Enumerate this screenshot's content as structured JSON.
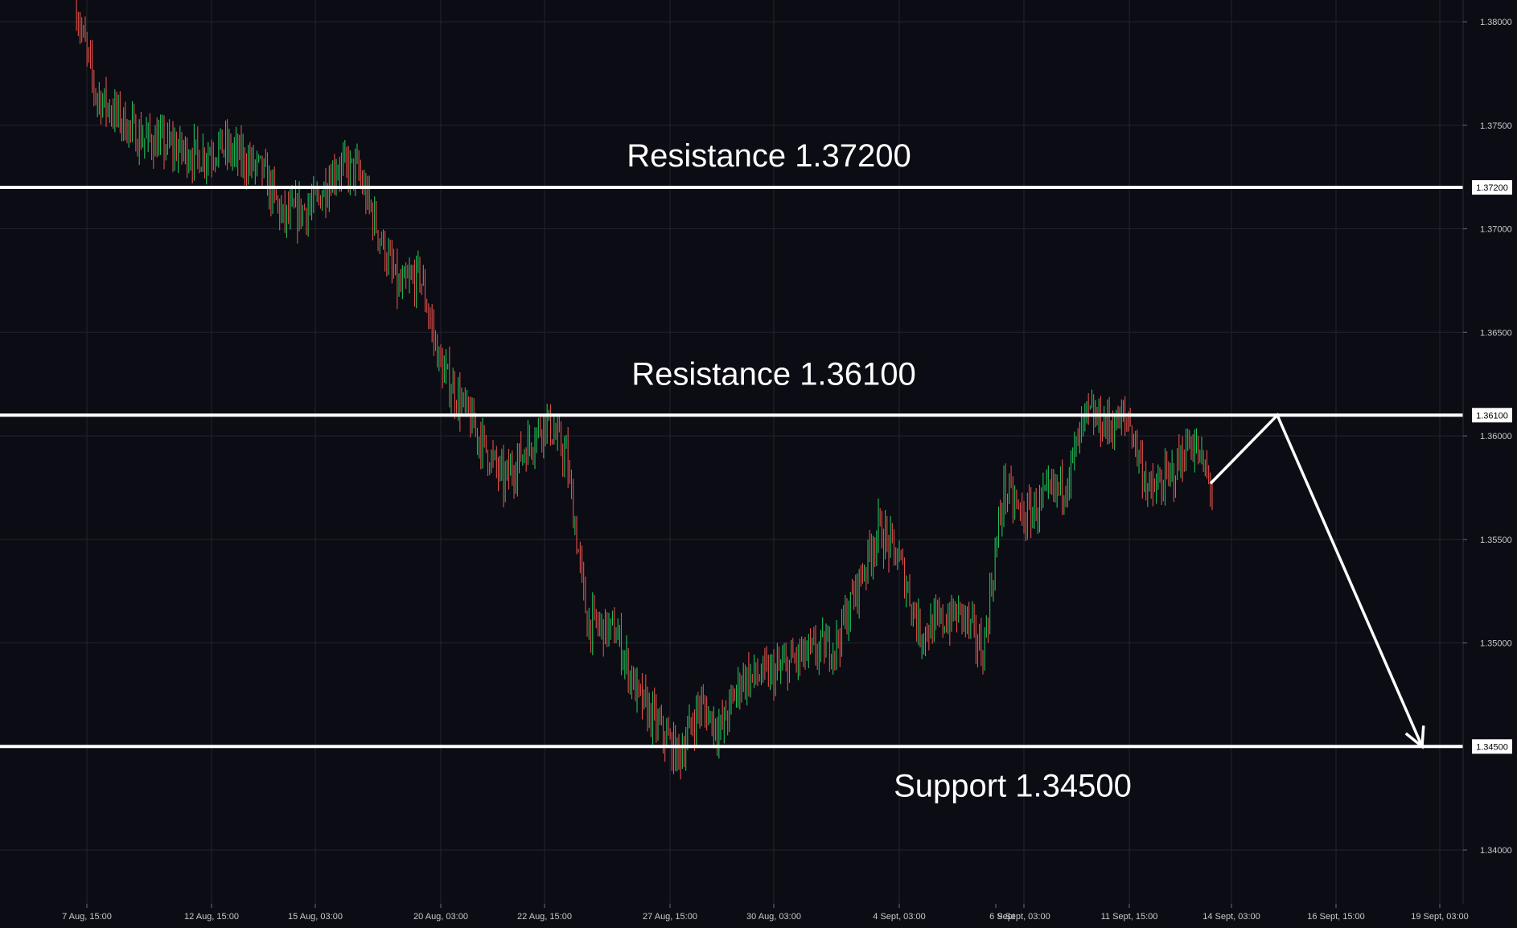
{
  "chart_data": {
    "type": "candlestick",
    "instrument": "",
    "ylim": [
      1.3374,
      1.38105
    ],
    "y_ticks": [
      "1.38000",
      "1.37500",
      "1.37000",
      "1.36500",
      "1.36000",
      "1.35500",
      "1.35000",
      "1.34000"
    ],
    "x_ticks": [
      "7 Aug, 15:00",
      "12 Aug, 15:00",
      "15 Aug, 03:00",
      "20 Aug, 03:00",
      "22 Aug, 15:00",
      "27 Aug, 15:00",
      "30 Aug, 03:00",
      "4 Sept, 03:00",
      "6 Sept",
      "9 Sept, 03:00",
      "11 Sept, 15:00",
      "14 Sept, 03:00",
      "16 Sept, 15:00",
      "19 Sept, 03:00"
    ],
    "grid": true,
    "colors": {
      "up": "#26a69a",
      "down": "#ef5350",
      "bullish_candle": "#22c05a",
      "bearish_candle": "#e0504a",
      "background": "#0c0c14",
      "level_line": "#ffffff",
      "grid": "#23232e"
    },
    "price_path": [
      {
        "t": "7 Aug, 03:00",
        "p": 1.381
      },
      {
        "t": "7 Aug, 15:00",
        "p": 1.3765
      },
      {
        "t": "8 Aug, 15:00",
        "p": 1.3745
      },
      {
        "t": "12 Aug, 03:00",
        "p": 1.3735
      },
      {
        "t": "12 Aug, 15:00",
        "p": 1.374
      },
      {
        "t": "13 Aug, 15:00",
        "p": 1.3728
      },
      {
        "t": "14 Aug, 03:00",
        "p": 1.3705
      },
      {
        "t": "15 Aug, 03:00",
        "p": 1.3712
      },
      {
        "t": "15 Aug, 15:00",
        "p": 1.373
      },
      {
        "t": "16 Aug, 03:00",
        "p": 1.3728
      },
      {
        "t": "19 Aug, 03:00",
        "p": 1.367
      },
      {
        "t": "19 Aug, 15:00",
        "p": 1.3678
      },
      {
        "t": "20 Aug, 03:00",
        "p": 1.3633
      },
      {
        "t": "20 Aug, 15:00",
        "p": 1.3615
      },
      {
        "t": "21 Aug, 15:00",
        "p": 1.3578
      },
      {
        "t": "22 Aug, 15:00",
        "p": 1.3608
      },
      {
        "t": "23 Aug, 03:00",
        "p": 1.359
      },
      {
        "t": "23 Aug, 15:00",
        "p": 1.351
      },
      {
        "t": "26 Aug, 03:00",
        "p": 1.3505
      },
      {
        "t": "26 Aug, 15:00",
        "p": 1.3475
      },
      {
        "t": "27 Aug, 15:00",
        "p": 1.3445
      },
      {
        "t": "28 Aug, 03:00",
        "p": 1.347
      },
      {
        "t": "28 Aug, 15:00",
        "p": 1.3458
      },
      {
        "t": "29 Aug, 03:00",
        "p": 1.3483
      },
      {
        "t": "30 Aug, 03:00",
        "p": 1.3485
      },
      {
        "t": "30 Aug, 15:00",
        "p": 1.3492
      },
      {
        "t": "2 Sept, 15:00",
        "p": 1.35
      },
      {
        "t": "3 Sept, 15:00",
        "p": 1.3555
      },
      {
        "t": "4 Sept, 03:00",
        "p": 1.354
      },
      {
        "t": "4 Sept, 15:00",
        "p": 1.3505
      },
      {
        "t": "5 Sept, 15:00",
        "p": 1.3515
      },
      {
        "t": "6 Sept, 03:00",
        "p": 1.3495
      },
      {
        "t": "6 Sept, 15:00",
        "p": 1.3575
      },
      {
        "t": "9 Sept, 03:00",
        "p": 1.356
      },
      {
        "t": "10 Sept, 03:00",
        "p": 1.3578
      },
      {
        "t": "10 Sept, 15:00",
        "p": 1.361
      },
      {
        "t": "11 Sept, 03:00",
        "p": 1.3605
      },
      {
        "t": "11 Sept, 15:00",
        "p": 1.3608
      },
      {
        "t": "12 Sept, 03:00",
        "p": 1.3572
      },
      {
        "t": "12 Sept, 15:00",
        "p": 1.358
      },
      {
        "t": "13 Sept, 03:00",
        "p": 1.3598
      },
      {
        "t": "13 Sept, 15:00",
        "p": 1.3575
      }
    ],
    "levels": [
      {
        "name": "Resistance 1.37200",
        "value": 1.372,
        "badge": "1.37200",
        "label": "Resistance 1.37200"
      },
      {
        "name": "Resistance 1.36100",
        "value": 1.361,
        "badge": "1.36100",
        "label": "Resistance 1.36100"
      },
      {
        "name": "Support 1.34500",
        "value": 1.345,
        "badge": "1.34500",
        "label": "Support 1.34500"
      }
    ],
    "projection": [
      {
        "t": "14 Sept, 03:00",
        "p": 1.3577
      },
      {
        "t": "15 Sept, 15:00",
        "p": 1.361
      },
      {
        "t": "19 Sept, 03:00",
        "p": 1.345
      }
    ]
  }
}
